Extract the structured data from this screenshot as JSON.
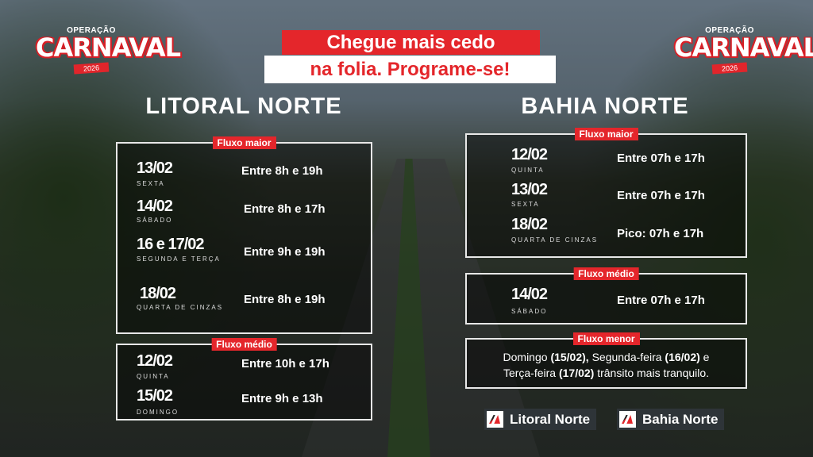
{
  "logo": {
    "small": "OPERAÇÃO",
    "main": "CARNAVAL",
    "year": "2026"
  },
  "banner": {
    "line1": "Chegue mais cedo",
    "line2": "na folia. Programe-se!"
  },
  "left": {
    "title": "LITORAL NORTE",
    "maior": {
      "tag": "Fluxo maior",
      "rows": [
        {
          "date": "13/02",
          "day": "SEXTA",
          "time": "Entre 8h e 19h"
        },
        {
          "date": "14/02",
          "day": "SÁBADO",
          "time": "Entre 8h e  17h"
        },
        {
          "date": "16 e 17/02",
          "day": "SEGUNDA E TERÇA",
          "time": "Entre 9h e 19h"
        },
        {
          "date": "18/02",
          "day": "QUARTA DE CINZAS",
          "time": "Entre 8h e 19h"
        }
      ]
    },
    "medio": {
      "tag": "Fluxo médio",
      "rows": [
        {
          "date": "12/02",
          "day": "QUINTA",
          "time": "Entre 10h e 17h"
        },
        {
          "date": "15/02",
          "day": "DOMINGO",
          "time": "Entre 9h e 13h"
        }
      ]
    }
  },
  "right": {
    "title": "BAHIA NORTE",
    "maior": {
      "tag": "Fluxo maior",
      "rows": [
        {
          "date": "12/02",
          "day": "QUINTA",
          "time": "Entre 07h e 17h"
        },
        {
          "date": "13/02",
          "day": "SEXTA",
          "time": "Entre 07h e 17h"
        },
        {
          "date": "18/02",
          "day": "QUARTA DE CINZAS",
          "time": "Pico:  07h e 17h"
        }
      ]
    },
    "medio": {
      "tag": "Fluxo médio",
      "rows": [
        {
          "date": "14/02",
          "day": "SÁBADO",
          "time": "Entre 07h e 17h"
        }
      ]
    },
    "menor": {
      "tag": "Fluxo menor",
      "parts": [
        "Domingo ",
        "(15/02),",
        " Segunda-feira ",
        "(16/02)",
        " e",
        "Terça-feira ",
        "(17/02)",
        " trânsito mais tranquilo."
      ]
    }
  },
  "brands": [
    "Litoral Norte",
    "Bahia Norte"
  ],
  "colors": {
    "accent": "#e4262b"
  }
}
